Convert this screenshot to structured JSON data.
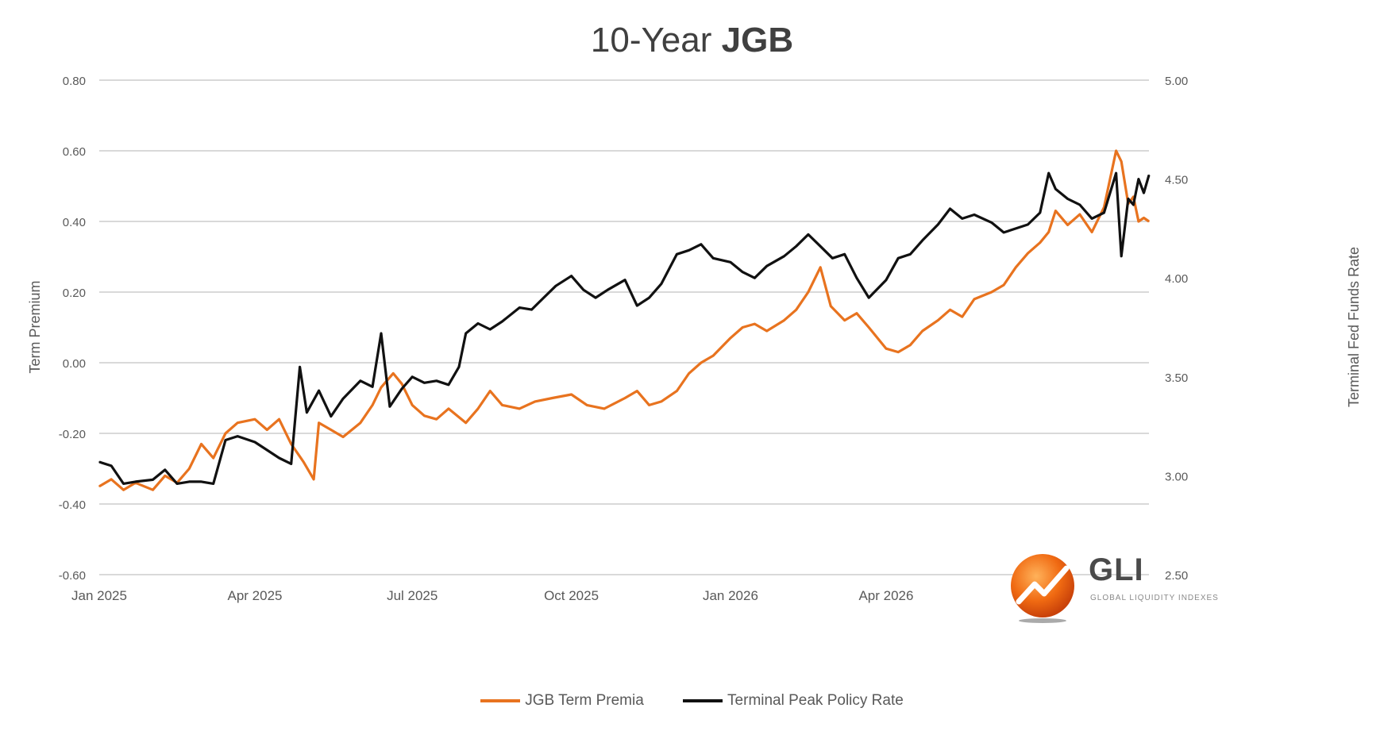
{
  "title_part1": "10-Year ",
  "title_part2": "JGB",
  "colors": {
    "orange": "#e8731f",
    "black": "#111111",
    "grid": "#d9d9d9",
    "text": "#595959"
  },
  "logo": {
    "text": "GLI",
    "sub": "GLOBAL LIQUIDITY INDEXES",
    "icon": "gli-swirl-logo"
  },
  "chart_data": {
    "type": "line",
    "title": "10-Year JGB",
    "ylabel": "Term Premium",
    "y2label": "Terminal Fed Funds Rate",
    "ylim": [
      -0.6,
      0.8
    ],
    "y2lim": [
      2.5,
      5.0
    ],
    "xlim": [
      "2025-01-01",
      "2026-08-31"
    ],
    "yticks": [
      "0.80",
      "0.60",
      "0.40",
      "0.20",
      "0.00",
      "-0.20",
      "-0.40",
      "-0.60"
    ],
    "y2ticks": [
      "5.00",
      "4.50",
      "4.00",
      "3.50",
      "3.00",
      "2.50"
    ],
    "xticks": [
      {
        "date": "2025-01-01",
        "label": "Jan 2025"
      },
      {
        "date": "2025-04-01",
        "label": "Apr 2025"
      },
      {
        "date": "2025-07-01",
        "label": "Jul 2025"
      },
      {
        "date": "2025-10-01",
        "label": "Oct 2025"
      },
      {
        "date": "2026-01-01",
        "label": "Jan 2026"
      },
      {
        "date": "2026-04-01",
        "label": "Apr 2026"
      },
      {
        "date": "2026-07-01",
        "label": "Jul 2026"
      }
    ],
    "grid": true,
    "legend": "bottom",
    "series": [
      {
        "name": "JGB Term Premia",
        "axis": "left",
        "color": "#e8731f",
        "points": [
          [
            "2025-01-01",
            -0.35
          ],
          [
            "2025-01-08",
            -0.33
          ],
          [
            "2025-01-15",
            -0.36
          ],
          [
            "2025-01-22",
            -0.34
          ],
          [
            "2025-02-01",
            -0.36
          ],
          [
            "2025-02-08",
            -0.32
          ],
          [
            "2025-02-15",
            -0.34
          ],
          [
            "2025-02-22",
            -0.3
          ],
          [
            "2025-03-01",
            -0.23
          ],
          [
            "2025-03-08",
            -0.27
          ],
          [
            "2025-03-15",
            -0.2
          ],
          [
            "2025-03-22",
            -0.17
          ],
          [
            "2025-04-01",
            -0.16
          ],
          [
            "2025-04-08",
            -0.19
          ],
          [
            "2025-04-15",
            -0.16
          ],
          [
            "2025-04-22",
            -0.23
          ],
          [
            "2025-04-29",
            -0.28
          ],
          [
            "2025-05-05",
            -0.33
          ],
          [
            "2025-05-08",
            -0.17
          ],
          [
            "2025-05-15",
            -0.19
          ],
          [
            "2025-05-22",
            -0.21
          ],
          [
            "2025-06-01",
            -0.17
          ],
          [
            "2025-06-08",
            -0.12
          ],
          [
            "2025-06-13",
            -0.07
          ],
          [
            "2025-06-20",
            -0.03
          ],
          [
            "2025-06-25",
            -0.06
          ],
          [
            "2025-07-01",
            -0.12
          ],
          [
            "2025-07-08",
            -0.15
          ],
          [
            "2025-07-15",
            -0.16
          ],
          [
            "2025-07-22",
            -0.13
          ],
          [
            "2025-08-01",
            -0.17
          ],
          [
            "2025-08-08",
            -0.13
          ],
          [
            "2025-08-15",
            -0.08
          ],
          [
            "2025-08-22",
            -0.12
          ],
          [
            "2025-09-01",
            -0.13
          ],
          [
            "2025-09-10",
            -0.11
          ],
          [
            "2025-09-20",
            -0.1
          ],
          [
            "2025-10-01",
            -0.09
          ],
          [
            "2025-10-10",
            -0.12
          ],
          [
            "2025-10-20",
            -0.13
          ],
          [
            "2025-11-01",
            -0.1
          ],
          [
            "2025-11-08",
            -0.08
          ],
          [
            "2025-11-15",
            -0.12
          ],
          [
            "2025-11-22",
            -0.11
          ],
          [
            "2025-12-01",
            -0.08
          ],
          [
            "2025-12-08",
            -0.03
          ],
          [
            "2025-12-15",
            0.0
          ],
          [
            "2025-12-22",
            0.02
          ],
          [
            "2026-01-01",
            0.07
          ],
          [
            "2026-01-08",
            0.1
          ],
          [
            "2026-01-15",
            0.11
          ],
          [
            "2026-01-22",
            0.09
          ],
          [
            "2026-02-01",
            0.12
          ],
          [
            "2026-02-08",
            0.15
          ],
          [
            "2026-02-15",
            0.2
          ],
          [
            "2026-02-22",
            0.27
          ],
          [
            "2026-02-28",
            0.16
          ],
          [
            "2026-03-08",
            0.12
          ],
          [
            "2026-03-15",
            0.14
          ],
          [
            "2026-03-22",
            0.1
          ],
          [
            "2026-04-01",
            0.04
          ],
          [
            "2026-04-08",
            0.03
          ],
          [
            "2026-04-15",
            0.05
          ],
          [
            "2026-04-22",
            0.09
          ],
          [
            "2026-05-01",
            0.12
          ],
          [
            "2026-05-08",
            0.15
          ],
          [
            "2026-05-15",
            0.13
          ],
          [
            "2026-05-22",
            0.18
          ],
          [
            "2026-06-01",
            0.2
          ],
          [
            "2026-06-08",
            0.22
          ],
          [
            "2026-06-15",
            0.27
          ],
          [
            "2026-06-22",
            0.31
          ],
          [
            "2026-06-29",
            0.34
          ],
          [
            "2026-07-04",
            0.37
          ],
          [
            "2026-07-08",
            0.43
          ],
          [
            "2026-07-15",
            0.39
          ],
          [
            "2026-07-22",
            0.42
          ],
          [
            "2026-07-29",
            0.37
          ],
          [
            "2026-08-05",
            0.44
          ],
          [
            "2026-08-12",
            0.6
          ],
          [
            "2026-08-15",
            0.57
          ],
          [
            "2026-08-19",
            0.45
          ],
          [
            "2026-08-22",
            0.47
          ],
          [
            "2026-08-25",
            0.4
          ],
          [
            "2026-08-28",
            0.41
          ],
          [
            "2026-08-31",
            0.4
          ]
        ]
      },
      {
        "name": "Terminal Peak Policy Rate",
        "axis": "right",
        "color": "#111111",
        "points": [
          [
            "2025-01-01",
            3.07
          ],
          [
            "2025-01-08",
            3.05
          ],
          [
            "2025-01-15",
            2.96
          ],
          [
            "2025-01-22",
            2.97
          ],
          [
            "2025-02-01",
            2.98
          ],
          [
            "2025-02-08",
            3.03
          ],
          [
            "2025-02-15",
            2.96
          ],
          [
            "2025-02-22",
            2.97
          ],
          [
            "2025-03-01",
            2.97
          ],
          [
            "2025-03-08",
            2.96
          ],
          [
            "2025-03-15",
            3.18
          ],
          [
            "2025-03-22",
            3.2
          ],
          [
            "2025-04-01",
            3.17
          ],
          [
            "2025-04-08",
            3.13
          ],
          [
            "2025-04-15",
            3.09
          ],
          [
            "2025-04-22",
            3.06
          ],
          [
            "2025-04-27",
            3.55
          ],
          [
            "2025-05-01",
            3.32
          ],
          [
            "2025-05-08",
            3.43
          ],
          [
            "2025-05-15",
            3.3
          ],
          [
            "2025-05-22",
            3.39
          ],
          [
            "2025-06-01",
            3.48
          ],
          [
            "2025-06-08",
            3.45
          ],
          [
            "2025-06-13",
            3.72
          ],
          [
            "2025-06-18",
            3.35
          ],
          [
            "2025-06-25",
            3.44
          ],
          [
            "2025-07-01",
            3.5
          ],
          [
            "2025-07-08",
            3.47
          ],
          [
            "2025-07-15",
            3.48
          ],
          [
            "2025-07-22",
            3.46
          ],
          [
            "2025-07-28",
            3.55
          ],
          [
            "2025-08-01",
            3.72
          ],
          [
            "2025-08-08",
            3.77
          ],
          [
            "2025-08-15",
            3.74
          ],
          [
            "2025-08-22",
            3.78
          ],
          [
            "2025-09-01",
            3.85
          ],
          [
            "2025-09-08",
            3.84
          ],
          [
            "2025-09-15",
            3.9
          ],
          [
            "2025-09-22",
            3.96
          ],
          [
            "2025-10-01",
            4.01
          ],
          [
            "2025-10-08",
            3.94
          ],
          [
            "2025-10-15",
            3.9
          ],
          [
            "2025-10-22",
            3.94
          ],
          [
            "2025-11-01",
            3.99
          ],
          [
            "2025-11-08",
            3.86
          ],
          [
            "2025-11-15",
            3.9
          ],
          [
            "2025-11-22",
            3.97
          ],
          [
            "2025-12-01",
            4.12
          ],
          [
            "2025-12-08",
            4.14
          ],
          [
            "2025-12-15",
            4.17
          ],
          [
            "2025-12-22",
            4.1
          ],
          [
            "2026-01-01",
            4.08
          ],
          [
            "2026-01-08",
            4.03
          ],
          [
            "2026-01-15",
            4.0
          ],
          [
            "2026-01-22",
            4.06
          ],
          [
            "2026-02-01",
            4.11
          ],
          [
            "2026-02-08",
            4.16
          ],
          [
            "2026-02-15",
            4.22
          ],
          [
            "2026-02-22",
            4.16
          ],
          [
            "2026-03-01",
            4.1
          ],
          [
            "2026-03-08",
            4.12
          ],
          [
            "2026-03-15",
            4.0
          ],
          [
            "2026-03-22",
            3.9
          ],
          [
            "2026-04-01",
            3.99
          ],
          [
            "2026-04-08",
            4.1
          ],
          [
            "2026-04-15",
            4.12
          ],
          [
            "2026-04-22",
            4.19
          ],
          [
            "2026-05-01",
            4.27
          ],
          [
            "2026-05-08",
            4.35
          ],
          [
            "2026-05-15",
            4.3
          ],
          [
            "2026-05-22",
            4.32
          ],
          [
            "2026-06-01",
            4.28
          ],
          [
            "2026-06-08",
            4.23
          ],
          [
            "2026-06-15",
            4.25
          ],
          [
            "2026-06-22",
            4.27
          ],
          [
            "2026-06-29",
            4.33
          ],
          [
            "2026-07-04",
            4.53
          ],
          [
            "2026-07-08",
            4.45
          ],
          [
            "2026-07-15",
            4.4
          ],
          [
            "2026-07-22",
            4.37
          ],
          [
            "2026-07-29",
            4.3
          ],
          [
            "2026-08-05",
            4.33
          ],
          [
            "2026-08-12",
            4.53
          ],
          [
            "2026-08-15",
            4.11
          ],
          [
            "2026-08-19",
            4.4
          ],
          [
            "2026-08-22",
            4.37
          ],
          [
            "2026-08-25",
            4.5
          ],
          [
            "2026-08-28",
            4.43
          ],
          [
            "2026-08-31",
            4.52
          ]
        ]
      }
    ]
  }
}
